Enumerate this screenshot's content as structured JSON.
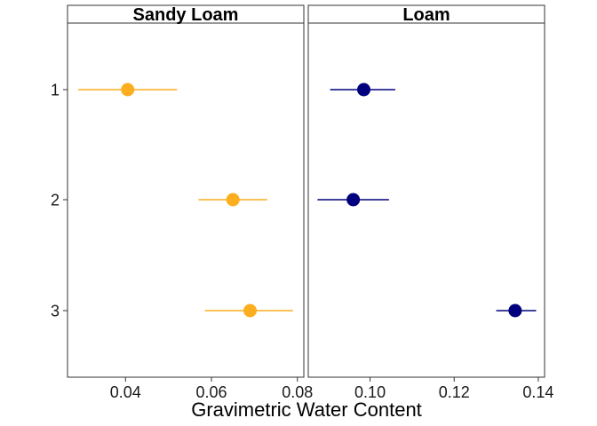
{
  "chart_data": {
    "type": "scatter",
    "variant": "point-range (mean with error bars), faceted",
    "xlabel": "Gravimetric Water Content",
    "ylabel": "",
    "grid": false,
    "categories": [
      "1",
      "2",
      "3"
    ],
    "panels": [
      {
        "title": "Sandy Loam",
        "color": "#FCAE1E",
        "xlim": [
          0.0265,
          0.0815
        ],
        "xticks": [
          0.04,
          0.06,
          0.08
        ],
        "points": [
          {
            "category": "1",
            "value": 0.0405,
            "lower": 0.029,
            "upper": 0.052
          },
          {
            "category": "2",
            "value": 0.065,
            "lower": 0.057,
            "upper": 0.073
          },
          {
            "category": "3",
            "value": 0.069,
            "lower": 0.0585,
            "upper": 0.079
          }
        ]
      },
      {
        "title": "Loam",
        "color": "#00007F",
        "xlim": [
          0.0853,
          0.1415
        ],
        "xticks": [
          0.1,
          0.12,
          0.14
        ],
        "points": [
          {
            "category": "1",
            "value": 0.0985,
            "lower": 0.0905,
            "upper": 0.106
          },
          {
            "category": "2",
            "value": 0.096,
            "lower": 0.0875,
            "upper": 0.1045
          },
          {
            "category": "3",
            "value": 0.1345,
            "lower": 0.13,
            "upper": 0.1395
          }
        ]
      }
    ]
  }
}
